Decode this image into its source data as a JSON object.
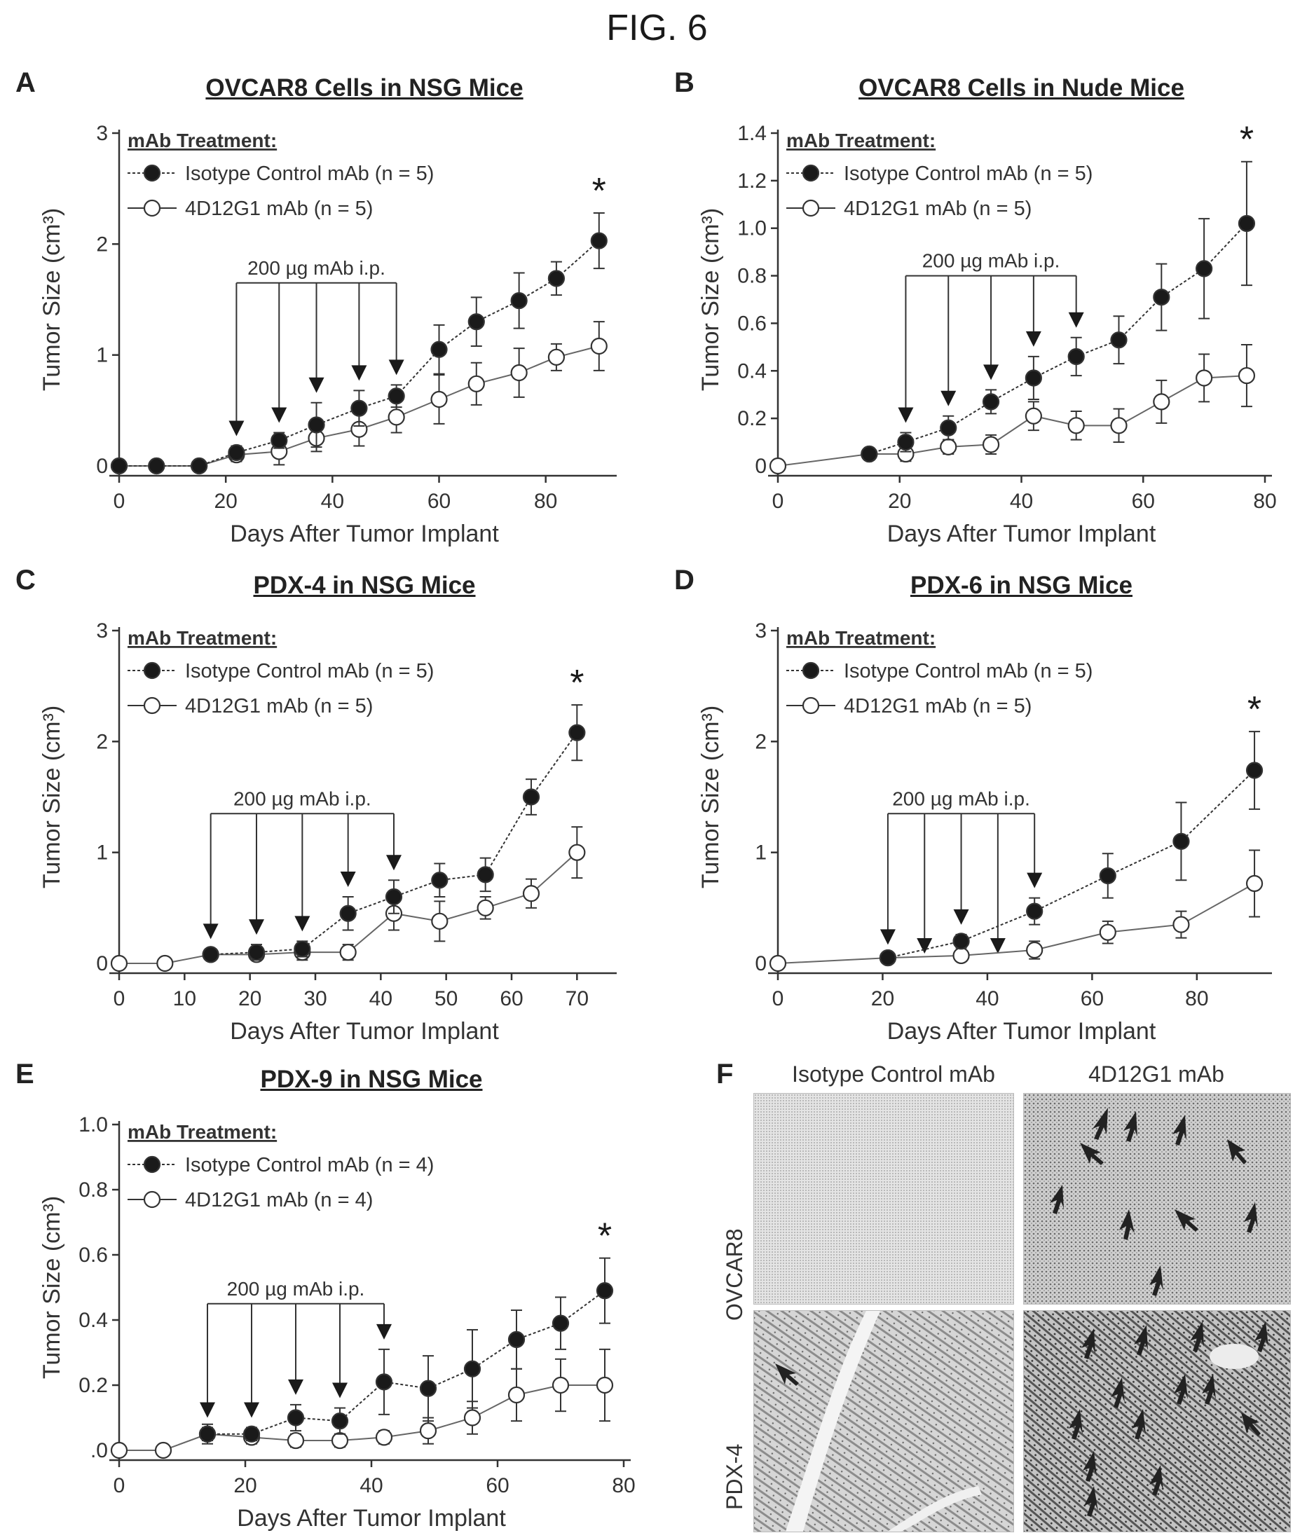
{
  "figure_title": "FIG. 6",
  "chart_data": [
    {
      "id": "A",
      "panel_label": "A",
      "type": "line",
      "title": "OVCAR8 Cells in NSG Mice",
      "xlabel": "Days After Tumor Implant",
      "ylabel": "Tumor Size (cm³)",
      "xlim": [
        0,
        92
      ],
      "ylim": [
        0,
        3
      ],
      "xticks": [
        0,
        20,
        40,
        60,
        80
      ],
      "yticks": [
        0,
        1,
        2,
        3
      ],
      "ytick_labels": [
        "0",
        "1",
        "2",
        "3"
      ],
      "legend_title": "mAb Treatment:",
      "legend_placement": "top-left",
      "series": [
        {
          "name": "Isotype Control mAb (n = 5)",
          "marker": "filled",
          "x": [
            0,
            7,
            15,
            22,
            30,
            37,
            45,
            52,
            60,
            67,
            75,
            82,
            90
          ],
          "y": [
            0,
            0,
            0,
            0.12,
            0.23,
            0.37,
            0.52,
            0.63,
            1.05,
            1.3,
            1.49,
            1.69,
            2.03
          ],
          "err": [
            0,
            0,
            0,
            0.06,
            0.07,
            0.2,
            0.16,
            0.1,
            0.22,
            0.22,
            0.25,
            0.15,
            0.25
          ]
        },
        {
          "name": "4D12G1 mAb (n = 5)",
          "marker": "open",
          "x": [
            0,
            7,
            15,
            22,
            30,
            37,
            45,
            52,
            60,
            67,
            75,
            82,
            90
          ],
          "y": [
            0,
            0,
            0,
            0.1,
            0.13,
            0.25,
            0.33,
            0.44,
            0.6,
            0.74,
            0.84,
            0.98,
            1.08
          ],
          "err": [
            0,
            0,
            0,
            0.06,
            0.12,
            0.12,
            0.15,
            0.14,
            0.22,
            0.19,
            0.22,
            0.12,
            0.22
          ]
        }
      ],
      "annotation": {
        "text": "200 µg mAb i.p.",
        "arrow_days": [
          22,
          30,
          37,
          45,
          52
        ],
        "label_y": 1.65
      },
      "significance": {
        "text": "*",
        "x": 90
      }
    },
    {
      "id": "B",
      "panel_label": "B",
      "type": "line",
      "title": "OVCAR8 Cells in Nude Mice",
      "xlabel": "Days After Tumor Implant",
      "ylabel": "Tumor Size (cm³)",
      "xlim": [
        0,
        80
      ],
      "ylim": [
        0,
        1.4
      ],
      "xticks": [
        0,
        20,
        40,
        60,
        80
      ],
      "yticks": [
        0,
        0.2,
        0.4,
        0.6,
        0.8,
        1.0,
        1.2,
        1.4
      ],
      "ytick_labels": [
        "0",
        "0.2",
        "0.4",
        "0.6",
        "0.8",
        "1.0",
        "1.2",
        "1.4"
      ],
      "legend_title": "mAb Treatment:",
      "legend_placement": "top-left",
      "series": [
        {
          "name": "Isotype Control mAb (n = 5)",
          "marker": "filled",
          "x": [
            15,
            21,
            28,
            35,
            42,
            49,
            56,
            63,
            70,
            77
          ],
          "y": [
            0.05,
            0.1,
            0.16,
            0.27,
            0.37,
            0.46,
            0.53,
            0.71,
            0.83,
            1.02
          ],
          "err": [
            0.02,
            0.04,
            0.05,
            0.05,
            0.09,
            0.08,
            0.1,
            0.14,
            0.21,
            0.26
          ]
        },
        {
          "name": "4D12G1 mAb (n = 5)",
          "marker": "open",
          "x": [
            0,
            15,
            21,
            28,
            35,
            42,
            49,
            56,
            63,
            70,
            77
          ],
          "y": [
            0,
            0.05,
            0.05,
            0.08,
            0.09,
            0.21,
            0.17,
            0.17,
            0.27,
            0.37,
            0.38
          ],
          "err": [
            0,
            0.02,
            0.03,
            0.03,
            0.04,
            0.06,
            0.06,
            0.07,
            0.09,
            0.1,
            0.13
          ]
        }
      ],
      "annotation": {
        "text": "200 µg mAb i.p.",
        "arrow_days": [
          21,
          28,
          35,
          42,
          49
        ],
        "label_y": 0.8
      },
      "significance": {
        "text": "*",
        "x": 77
      }
    },
    {
      "id": "C",
      "panel_label": "C",
      "type": "line",
      "title": "PDX-4 in NSG Mice",
      "xlabel": "Days After Tumor Implant",
      "ylabel": "Tumor Size (cm³)",
      "xlim": [
        0,
        75
      ],
      "ylim": [
        0,
        3
      ],
      "xticks": [
        0,
        10,
        20,
        30,
        40,
        50,
        60,
        70
      ],
      "yticks": [
        0,
        1,
        2,
        3
      ],
      "ytick_labels": [
        "0",
        "1",
        "2",
        "3"
      ],
      "legend_title": "mAb Treatment:",
      "legend_placement": "top-left",
      "series": [
        {
          "name": "Isotype Control mAb (n = 5)",
          "marker": "filled",
          "x": [
            14,
            21,
            28,
            35,
            42,
            49,
            56,
            63,
            70
          ],
          "y": [
            0.08,
            0.1,
            0.13,
            0.45,
            0.6,
            0.75,
            0.8,
            1.5,
            2.08
          ],
          "err": [
            0.05,
            0.07,
            0.07,
            0.15,
            0.15,
            0.15,
            0.15,
            0.16,
            0.25
          ]
        },
        {
          "name": "4D12G1 mAb (n = 5)",
          "marker": "open",
          "x": [
            0,
            7,
            14,
            21,
            28,
            35,
            42,
            49,
            56,
            63,
            70
          ],
          "y": [
            0,
            0,
            0.08,
            0.08,
            0.1,
            0.1,
            0.45,
            0.38,
            0.5,
            0.63,
            1.0
          ],
          "err": [
            0,
            0,
            0.05,
            0.05,
            0.07,
            0.07,
            0.15,
            0.18,
            0.1,
            0.13,
            0.23
          ]
        }
      ],
      "annotation": {
        "text": "200 µg mAb i.p.",
        "arrow_days": [
          14,
          21,
          28,
          35,
          42
        ],
        "label_y": 1.35
      },
      "significance": {
        "text": "*",
        "x": 70
      }
    },
    {
      "id": "D",
      "panel_label": "D",
      "type": "line",
      "title": "PDX-6 in NSG Mice",
      "xlabel": "Days After Tumor Implant",
      "ylabel": "Tumor Size (cm³)",
      "xlim": [
        0,
        93
      ],
      "ylim": [
        0,
        3
      ],
      "xticks": [
        0,
        20,
        40,
        60,
        80
      ],
      "yticks": [
        0,
        1,
        2,
        3
      ],
      "ytick_labels": [
        "0",
        "1",
        "2",
        "3"
      ],
      "legend_title": "mAb Treatment:",
      "legend_placement": "top-left",
      "series": [
        {
          "name": "Isotype Control mAb (n = 5)",
          "marker": "filled",
          "x": [
            21,
            35,
            49,
            63,
            77,
            91
          ],
          "y": [
            0.05,
            0.2,
            0.47,
            0.79,
            1.1,
            1.74
          ],
          "err": [
            0.03,
            0.06,
            0.12,
            0.2,
            0.35,
            0.35
          ]
        },
        {
          "name": "4D12G1 mAb (n = 5)",
          "marker": "open",
          "x": [
            0,
            21,
            35,
            49,
            63,
            77,
            91
          ],
          "y": [
            0,
            0.05,
            0.07,
            0.12,
            0.28,
            0.35,
            0.72
          ],
          "err": [
            0,
            0.03,
            0.04,
            0.08,
            0.1,
            0.12,
            0.3
          ]
        }
      ],
      "annotation": {
        "text": "200 µg mAb i.p.",
        "arrow_days": [
          21,
          28,
          35,
          42,
          49
        ],
        "label_y": 1.35
      },
      "significance": {
        "text": "*",
        "x": 91
      }
    },
    {
      "id": "E",
      "panel_label": "E",
      "type": "line",
      "title": "PDX-9 in NSG Mice",
      "xlabel": "Days After Tumor Implant",
      "ylabel": "Tumor Size (cm³)",
      "xlim": [
        0,
        80
      ],
      "ylim": [
        0,
        1.0
      ],
      "xticks": [
        0,
        20,
        40,
        60,
        80
      ],
      "yticks": [
        0,
        0.2,
        0.4,
        0.6,
        0.8,
        1.0
      ],
      "ytick_labels": [
        ".0",
        "0.2",
        "0.4",
        "0.6",
        "0.8",
        "1.0"
      ],
      "legend_title": "mAb Treatment:",
      "legend_placement": "top-left",
      "series": [
        {
          "name": "Isotype Control mAb (n = 4)",
          "marker": "filled",
          "x": [
            14,
            21,
            28,
            35,
            42,
            49,
            56,
            63,
            70,
            77
          ],
          "y": [
            0.05,
            0.05,
            0.1,
            0.09,
            0.21,
            0.19,
            0.25,
            0.34,
            0.39,
            0.49
          ],
          "err": [
            0.02,
            0.02,
            0.04,
            0.04,
            0.1,
            0.1,
            0.12,
            0.09,
            0.08,
            0.1
          ]
        },
        {
          "name": "4D12G1 mAb (n = 4)",
          "marker": "open",
          "x": [
            0,
            7,
            14,
            21,
            28,
            35,
            42,
            49,
            56,
            63,
            70,
            77
          ],
          "y": [
            0,
            0,
            0.05,
            0.04,
            0.03,
            0.03,
            0.04,
            0.06,
            0.1,
            0.17,
            0.2,
            0.2
          ],
          "err": [
            0,
            0,
            0.03,
            0.02,
            0.02,
            0.02,
            0.02,
            0.04,
            0.05,
            0.08,
            0.08,
            0.11
          ]
        }
      ],
      "annotation": {
        "text": "200 µg mAb i.p.",
        "arrow_days": [
          14,
          21,
          28,
          35,
          42
        ],
        "label_y": 0.45
      },
      "significance": {
        "text": "*",
        "x": 77
      }
    }
  ],
  "panel_f": {
    "panel_label": "F",
    "column_labels": [
      "Isotype Control mAb",
      "4D12G1 mAb"
    ],
    "row_labels": [
      "OVCAR8",
      "PDX-4"
    ]
  }
}
